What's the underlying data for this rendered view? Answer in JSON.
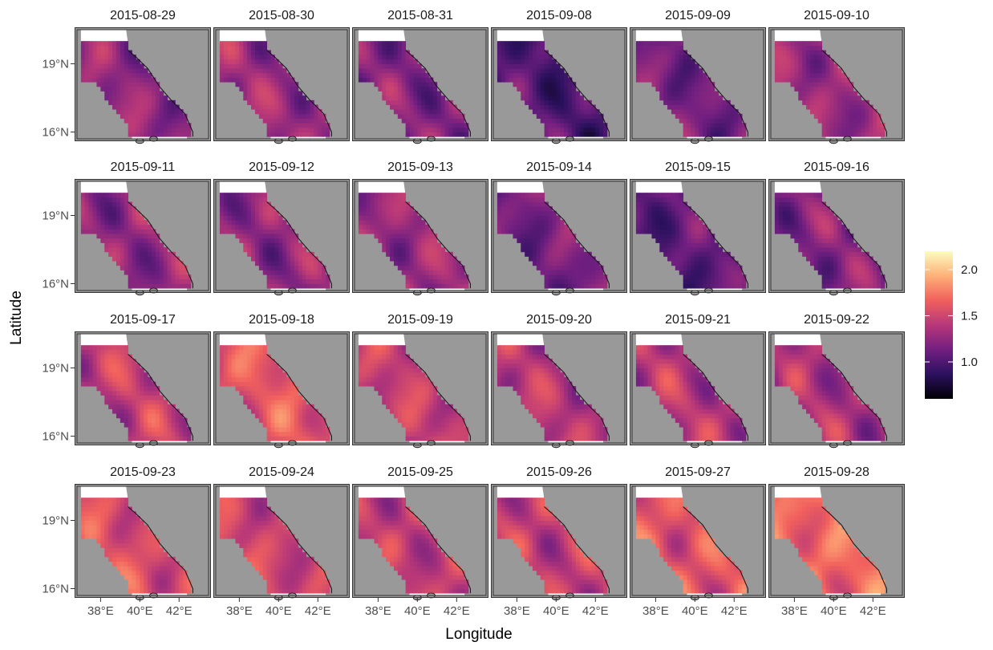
{
  "chart_data": {
    "type": "heatmap",
    "title": "",
    "xlabel": "Longitude",
    "ylabel": "Latitude",
    "facets": [
      "2015-08-29",
      "2015-08-30",
      "2015-08-31",
      "2015-09-08",
      "2015-09-09",
      "2015-09-10",
      "2015-09-11",
      "2015-09-12",
      "2015-09-13",
      "2015-09-14",
      "2015-09-15",
      "2015-09-16",
      "2015-09-17",
      "2015-09-18",
      "2015-09-19",
      "2015-09-20",
      "2015-09-21",
      "2015-09-22",
      "2015-09-23",
      "2015-09-24",
      "2015-09-25",
      "2015-09-26",
      "2015-09-27",
      "2015-09-28"
    ],
    "x_ticks": [
      "38°E",
      "40°E",
      "42°E"
    ],
    "y_ticks": [
      "19°N",
      "16°N"
    ],
    "x_tick_values": [
      38,
      40,
      42
    ],
    "y_tick_values": [
      19,
      16
    ],
    "xlim": [
      36.8,
      43.5
    ],
    "ylim": [
      15.7,
      20.5
    ],
    "legend": {
      "ticks": [
        "2.0",
        "1.5",
        "1.0"
      ],
      "tick_values": [
        2.0,
        1.5,
        1.0
      ],
      "range": [
        0.6,
        2.2
      ],
      "palette": "magma",
      "colors": [
        "#000004",
        "#2c115f",
        "#721f81",
        "#b73779",
        "#f1605d",
        "#feb078",
        "#fcfdbf"
      ]
    },
    "land_color": "#999999",
    "nodata_color": "#ffffff",
    "facet_mean_values": [
      1.25,
      1.3,
      1.2,
      1.0,
      1.15,
      1.3,
      1.25,
      1.25,
      1.3,
      1.15,
      1.05,
      1.2,
      1.45,
      1.6,
      1.45,
      1.4,
      1.4,
      1.35,
      1.55,
      1.5,
      1.45,
      1.45,
      1.6,
      1.7
    ]
  }
}
